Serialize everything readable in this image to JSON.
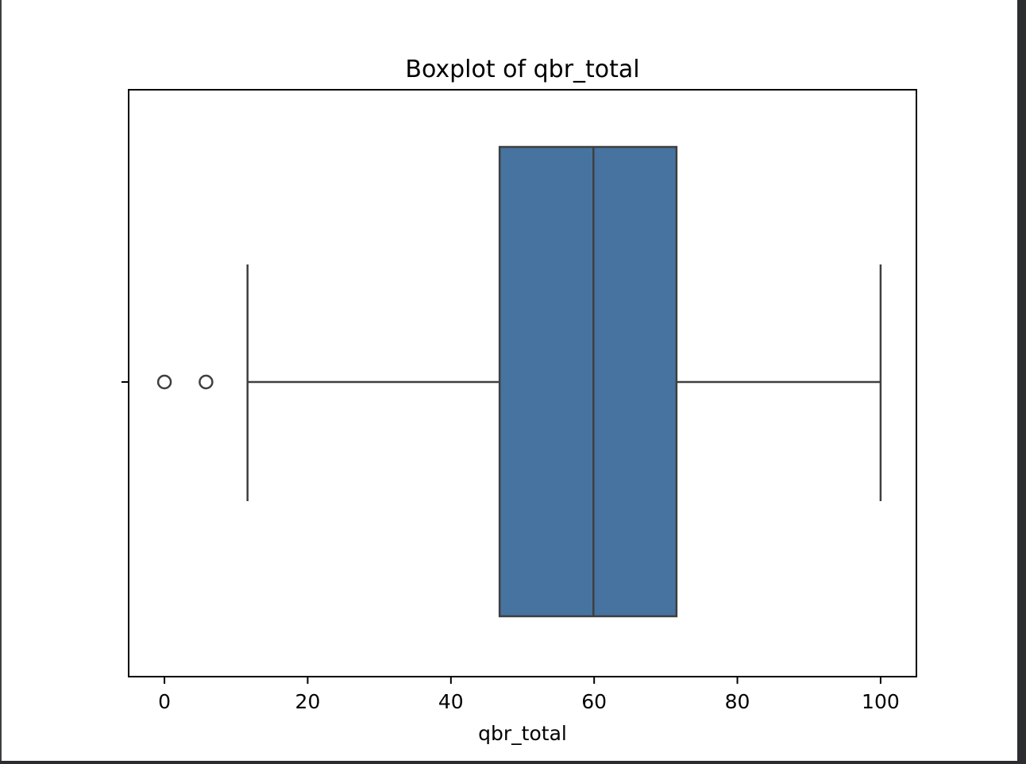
{
  "chart_data": {
    "type": "boxplot",
    "title": "Boxplot of qbr_total",
    "xlabel": "qbr_total",
    "ylabel": "",
    "orientation": "horizontal",
    "xlim": [
      -5,
      105
    ],
    "xticks": [
      0,
      20,
      40,
      60,
      80,
      100
    ],
    "xtick_labels": [
      "0",
      "20",
      "40",
      "60",
      "80",
      "100"
    ],
    "grid": false,
    "box": {
      "whisker_low": 11.6,
      "q1": 46.8,
      "median": 59.9,
      "q3": 71.5,
      "whisker_high": 100.0,
      "outliers": [
        0.0,
        5.8
      ]
    },
    "colors": {
      "box_fill": "#4673a0",
      "line": "#3f3f3f"
    }
  }
}
